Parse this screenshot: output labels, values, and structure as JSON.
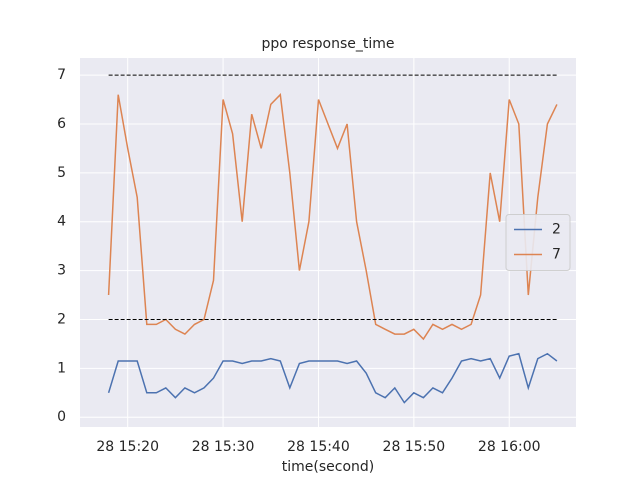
{
  "chart_data": {
    "type": "line",
    "title": "ppo response_time",
    "xlabel": "time(second)",
    "x": [
      "28 15:18",
      "28 15:19",
      "28 15:20",
      "28 15:21",
      "28 15:22",
      "28 15:23",
      "28 15:24",
      "28 15:25",
      "28 15:26",
      "28 15:27",
      "28 15:28",
      "28 15:29",
      "28 15:30",
      "28 15:31",
      "28 15:32",
      "28 15:33",
      "28 15:34",
      "28 15:35",
      "28 15:36",
      "28 15:37",
      "28 15:38",
      "28 15:39",
      "28 15:40",
      "28 15:41",
      "28 15:42",
      "28 15:43",
      "28 15:44",
      "28 15:45",
      "28 15:46",
      "28 15:47",
      "28 15:48",
      "28 15:49",
      "28 15:50",
      "28 15:51",
      "28 15:52",
      "28 15:53",
      "28 15:54",
      "28 15:55",
      "28 15:56",
      "28 15:57",
      "28 15:58",
      "28 15:59",
      "28 16:00",
      "28 16:01",
      "28 16:02",
      "28 16:03",
      "28 16:04",
      "28 16:05"
    ],
    "series": [
      {
        "name": "2",
        "color": "#4c72b0",
        "values": [
          0.5,
          1.15,
          1.15,
          1.15,
          0.5,
          0.5,
          0.6,
          0.4,
          0.6,
          0.5,
          0.6,
          0.8,
          1.15,
          1.15,
          1.1,
          1.15,
          1.15,
          1.2,
          1.15,
          0.6,
          1.1,
          1.15,
          1.15,
          1.15,
          1.15,
          1.1,
          1.15,
          0.9,
          0.5,
          0.4,
          0.6,
          0.3,
          0.5,
          0.4,
          0.6,
          0.5,
          0.8,
          1.15,
          1.2,
          1.15,
          1.2,
          0.8,
          1.25,
          1.3,
          0.6,
          1.2,
          1.3,
          1.15
        ]
      },
      {
        "name": "7",
        "color": "#dd8452",
        "values": [
          2.5,
          6.6,
          5.5,
          4.5,
          1.9,
          1.9,
          2.0,
          1.8,
          1.7,
          1.9,
          2.0,
          2.8,
          6.5,
          5.8,
          4.0,
          6.2,
          5.5,
          6.4,
          6.6,
          5.0,
          3.0,
          4.0,
          6.5,
          6.0,
          5.5,
          6.0,
          4.0,
          3.0,
          1.9,
          1.8,
          1.7,
          1.7,
          1.8,
          1.6,
          1.9,
          1.8,
          1.9,
          1.8,
          1.9,
          2.5,
          5.0,
          4.0,
          6.5,
          6.0,
          2.5,
          4.5,
          6.0,
          6.4
        ]
      }
    ],
    "reference_lines": [
      7,
      2
    ],
    "xlim": [
      "28 15:15",
      "28 16:07"
    ],
    "xticks": [
      "28 15:20",
      "28 15:30",
      "28 15:40",
      "28 15:50",
      "28 16:00"
    ],
    "ylim": [
      -0.2,
      7.35
    ],
    "yticks": [
      0,
      1,
      2,
      3,
      4,
      5,
      6,
      7
    ],
    "grid": true,
    "legend": "center right"
  }
}
